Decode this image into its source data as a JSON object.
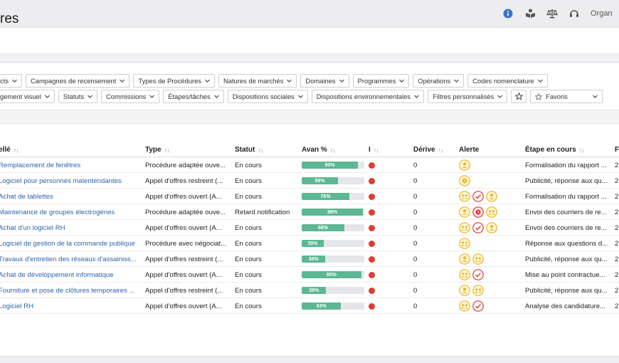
{
  "header": {
    "title": "res",
    "org_label": "Organ"
  },
  "filters": {
    "row1": [
      "cts",
      "Campagnes de recensement",
      "Types de Procédures",
      "Natures de marchés",
      "Domaines",
      "Programmes",
      "Opérations",
      "Codes nomenclature"
    ],
    "row2": [
      "gement visuel",
      "Statuts",
      "Commissions",
      "Étapes/tâches",
      "Dispositions sociales",
      "Dispositions environnementales",
      "Filtres personnalisés"
    ],
    "favoris_label": "Favoris"
  },
  "table": {
    "headers": {
      "libelle": "ellé",
      "type": "Type",
      "statut": "Statut",
      "avancement": "Avan %",
      "indicateur": "I",
      "derive": "Dérive",
      "alerte": "Alerte",
      "etape": "Étape en cours",
      "f": "F"
    },
    "sort_glyph": "↑↓",
    "rows": [
      {
        "libelle": "Remplacement de fenêtres",
        "type": "Procédure adaptée ouve...",
        "statut": "En cours",
        "avancement": 90,
        "avancement_label": "90%",
        "derive": "0",
        "alertes": [
          "user-yellow"
        ],
        "etape": "Formalisation du rapport ...",
        "f": "2"
      },
      {
        "libelle": "Logiciel pour personnes malentendantes",
        "type": "Appel d'offres restreint (...",
        "statut": "En cours",
        "avancement": 58,
        "avancement_label": "58%",
        "derive": "0",
        "alertes": [
          "clock-yellow"
        ],
        "etape": "Publicité, réponse aux qu...",
        "f": "2"
      },
      {
        "libelle": "Achat de tablettes",
        "type": "Appel d'offres ouvert (A...",
        "statut": "En cours",
        "avancement": 76,
        "avancement_label": "76%",
        "derive": "0",
        "alertes": [
          "group-yellow",
          "check-red",
          "user-yellow"
        ],
        "etape": "Formalisation du rapport ...",
        "f": "2"
      },
      {
        "libelle": "Maintenance de groupes électrogènes",
        "type": "Procédure adaptée ouve...",
        "statut": "Retard notification",
        "avancement": 98,
        "avancement_label": "98%",
        "derive": "0",
        "alertes": [
          "user-yellow",
          "clock-red",
          "group-yellow"
        ],
        "etape": "Envoi des courriers de re...",
        "f": "2"
      },
      {
        "libelle": "Achat d'un logiciel RH",
        "type": "Appel d'offres ouvert (A...",
        "statut": "En cours",
        "avancement": 68,
        "avancement_label": "68%",
        "derive": "0",
        "alertes": [
          "group-yellow",
          "check-red",
          "user-yellow"
        ],
        "etape": "Envoi des courriers de re...",
        "f": "2"
      },
      {
        "libelle": "Logiciel de gestion de la commande publique",
        "type": "Procédure avec négociat...",
        "statut": "En cours",
        "avancement": 35,
        "avancement_label": "35%",
        "derive": "0",
        "alertes": [
          "group-yellow"
        ],
        "etape": "Réponse aux questions d...",
        "f": "2"
      },
      {
        "libelle": "Travaux d'entretien des réseaux d'assainiss...",
        "type": "Appel d'offres restreint (...",
        "statut": "En cours",
        "avancement": 38,
        "avancement_label": "38%",
        "derive": "0",
        "alertes": [
          "user-yellow",
          "group-yellow"
        ],
        "etape": "Publicité, réponse aux qu...",
        "f": "2"
      },
      {
        "libelle": "Achat de développement informatique",
        "type": "Appel d'offres ouvert (A...",
        "statut": "En cours",
        "avancement": 95,
        "avancement_label": "95%",
        "derive": "0",
        "alertes": [
          "group-yellow",
          "check-red"
        ],
        "etape": "Mise au point contractue...",
        "f": "2"
      },
      {
        "libelle": "Fourniture et pose de clôtures temporaires ...",
        "type": "Appel d'offres restreint (...",
        "statut": "En cours",
        "avancement": 39,
        "avancement_label": "39%",
        "derive": "0",
        "alertes": [
          "user-yellow",
          "group-yellow"
        ],
        "etape": "Publicité, réponse aux qu...",
        "f": "2"
      },
      {
        "libelle": "Logiciel RH",
        "type": "Appel d'offres ouvert (A...",
        "statut": "En cours",
        "avancement": 63,
        "avancement_label": "63%",
        "derive": "0",
        "alertes": [
          "group-yellow",
          "check-red"
        ],
        "etape": "Analyse des candidature...",
        "f": "2"
      }
    ]
  },
  "colors": {
    "progress": "#5cb794",
    "indicator": "#e03c31",
    "link": "#2e63a8",
    "alert_yellow": "#e9b824",
    "alert_red": "#d93a35"
  },
  "icons": {
    "top": [
      "info-icon",
      "book-reader-icon",
      "balance-scale-icon",
      "headset-icon"
    ]
  }
}
